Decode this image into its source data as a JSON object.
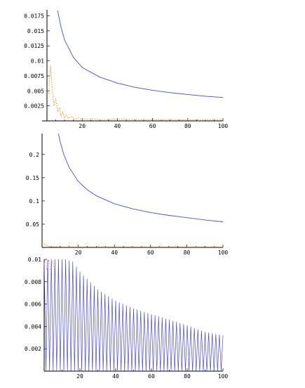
{
  "chart_data": [
    {
      "type": "line",
      "xlim": [
        0,
        100
      ],
      "ylim": [
        0,
        0.0185
      ],
      "xticks": [
        "20",
        "40",
        "60",
        "80",
        "100"
      ],
      "yticks": [
        "0.0025",
        "0.005",
        "0.0075",
        "0.01",
        "0.0125",
        "0.015",
        "0.0175"
      ],
      "series": [
        {
          "x": [
            6,
            8,
            10,
            15,
            20,
            30,
            40,
            50,
            60,
            70,
            80,
            90,
            100
          ],
          "values": [
            0.0184,
            0.0156,
            0.0135,
            0.0106,
            0.0089,
            0.0073,
            0.0063,
            0.0056,
            0.0051,
            0.0047,
            0.0044,
            0.0041,
            0.0039
          ]
        },
        {
          "x": [
            1,
            2,
            3,
            4,
            5,
            6,
            7,
            8,
            9,
            10,
            11,
            12,
            14,
            16,
            18,
            20,
            25,
            30,
            40,
            60,
            80,
            100
          ],
          "values": [
            0.0045,
            0.0092,
            0.0055,
            0.0025,
            0.0038,
            0.0015,
            0.0022,
            0.0008,
            0.0015,
            0.0005,
            0.001,
            0.0004,
            0.0007,
            0.0003,
            0.0005,
            0.0002,
            0.0004,
            0.0002,
            0.0003,
            0.0002,
            0.0002,
            0.0002
          ]
        }
      ]
    },
    {
      "type": "line",
      "xlim": [
        0,
        100
      ],
      "ylim": [
        0,
        0.245
      ],
      "xticks": [
        "20",
        "40",
        "60",
        "80",
        "100"
      ],
      "yticks": [
        "0.05",
        "0.1",
        "0.15",
        "0.2"
      ],
      "series": [
        {
          "x": [
            9,
            10,
            12,
            15,
            20,
            25,
            30,
            40,
            50,
            60,
            70,
            80,
            90,
            100
          ],
          "values": [
            0.245,
            0.228,
            0.2,
            0.172,
            0.142,
            0.124,
            0.111,
            0.094,
            0.083,
            0.075,
            0.069,
            0.064,
            0.059,
            0.055
          ]
        },
        {
          "x": [
            0,
            1,
            2,
            3,
            5,
            10,
            20,
            40,
            60,
            80,
            100
          ],
          "values": [
            0.011,
            0.008,
            0.005,
            0.003,
            0.002,
            0.001,
            0.001,
            0.001,
            0.001,
            0.001,
            0.001
          ]
        }
      ]
    },
    {
      "type": "line",
      "xlim": [
        0,
        100
      ],
      "ylim": [
        0,
        0.01
      ],
      "xticks": [
        "20",
        "40",
        "60",
        "80",
        "100"
      ],
      "yticks": [
        "0.002",
        "0.004",
        "0.006",
        "0.008",
        "0.01"
      ],
      "series": [
        {
          "x": [
            0,
            4,
            8,
            12,
            16,
            20,
            30,
            40,
            50,
            60,
            70,
            80,
            90,
            100
          ],
          "values": [
            0.01,
            0.01,
            0.01,
            0.01,
            0.0098,
            0.0089,
            0.0073,
            0.0063,
            0.0056,
            0.0051,
            0.0046,
            0.0041,
            0.0035,
            0.0032
          ]
        }
      ]
    }
  ]
}
